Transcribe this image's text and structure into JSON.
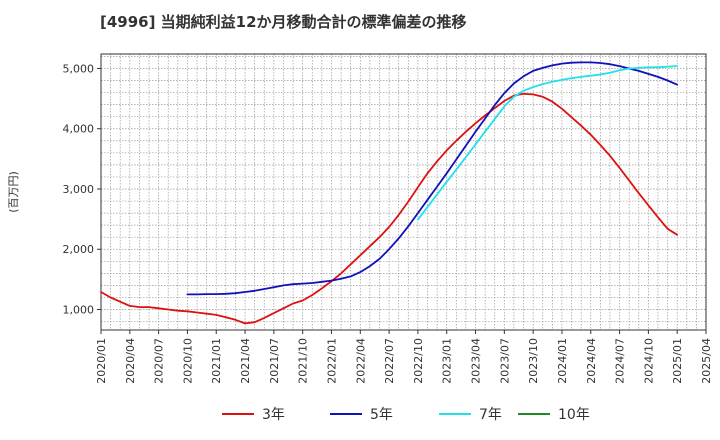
{
  "chart_data": {
    "type": "line",
    "title": "[4996]  当期純利益12か月移動合計の標準偏差の推移",
    "ylabel": "(百万円)",
    "xlabel": "",
    "ylim": [
      660,
      5240
    ],
    "yticks": [
      1000,
      2000,
      3000,
      4000,
      5000
    ],
    "ytick_labels": [
      "1,000",
      "2,000",
      "3,000",
      "4,000",
      "5,000"
    ],
    "xticks": [
      "2020/01",
      "2020/04",
      "2020/07",
      "2020/10",
      "2021/01",
      "2021/04",
      "2021/07",
      "2021/10",
      "2022/01",
      "2022/04",
      "2022/07",
      "2022/10",
      "2023/01",
      "2023/04",
      "2023/07",
      "2023/10",
      "2024/01",
      "2024/04",
      "2024/07",
      "2024/10",
      "2025/01",
      "2025/04"
    ],
    "grid": true,
    "legend_position": "bottom",
    "series": [
      {
        "name": "3年",
        "color": "#dd1111",
        "x": [
          "2020/01",
          "2020/02",
          "2020/03",
          "2020/04",
          "2020/05",
          "2020/06",
          "2020/07",
          "2020/08",
          "2020/09",
          "2020/10",
          "2020/11",
          "2020/12",
          "2021/01",
          "2021/02",
          "2021/03",
          "2021/04",
          "2021/05",
          "2021/06",
          "2021/07",
          "2021/08",
          "2021/09",
          "2021/10",
          "2021/11",
          "2021/12",
          "2022/01",
          "2022/02",
          "2022/03",
          "2022/04",
          "2022/05",
          "2022/06",
          "2022/07",
          "2022/08",
          "2022/09",
          "2022/10",
          "2022/11",
          "2022/12",
          "2023/01",
          "2023/02",
          "2023/03",
          "2023/04",
          "2023/05",
          "2023/06",
          "2023/07",
          "2023/08",
          "2023/09",
          "2023/10",
          "2023/11",
          "2023/12",
          "2024/01",
          "2024/02",
          "2024/03",
          "2024/04",
          "2024/05",
          "2024/06",
          "2024/07",
          "2024/08",
          "2024/09",
          "2024/10",
          "2024/11",
          "2024/12",
          "2025/01"
        ],
        "values": [
          1290,
          1200,
          1130,
          1060,
          1040,
          1040,
          1020,
          1000,
          980,
          970,
          950,
          930,
          910,
          870,
          830,
          770,
          790,
          860,
          940,
          1020,
          1100,
          1150,
          1240,
          1350,
          1470,
          1600,
          1750,
          1900,
          2050,
          2200,
          2370,
          2570,
          2790,
          3030,
          3260,
          3460,
          3640,
          3800,
          3950,
          4090,
          4220,
          4340,
          4460,
          4550,
          4580,
          4570,
          4530,
          4450,
          4330,
          4190,
          4050,
          3900,
          3730,
          3550,
          3350,
          3140,
          2930,
          2730,
          2530,
          2340,
          2240
        ]
      },
      {
        "name": "5年",
        "color": "#1111bb",
        "x": [
          "2020/10",
          "2020/11",
          "2020/12",
          "2021/01",
          "2021/02",
          "2021/03",
          "2021/04",
          "2021/05",
          "2021/06",
          "2021/07",
          "2021/08",
          "2021/09",
          "2021/10",
          "2021/11",
          "2021/12",
          "2022/01",
          "2022/02",
          "2022/03",
          "2022/04",
          "2022/05",
          "2022/06",
          "2022/07",
          "2022/08",
          "2022/09",
          "2022/10",
          "2022/11",
          "2022/12",
          "2023/01",
          "2023/02",
          "2023/03",
          "2023/04",
          "2023/05",
          "2023/06",
          "2023/07",
          "2023/08",
          "2023/09",
          "2023/10",
          "2023/11",
          "2023/12",
          "2024/01",
          "2024/02",
          "2024/03",
          "2024/04",
          "2024/05",
          "2024/06",
          "2024/07",
          "2024/08",
          "2024/09",
          "2024/10",
          "2024/11",
          "2024/12",
          "2025/01"
        ],
        "values": [
          1250,
          1250,
          1255,
          1255,
          1260,
          1270,
          1290,
          1310,
          1340,
          1370,
          1400,
          1420,
          1430,
          1440,
          1460,
          1480,
          1510,
          1550,
          1620,
          1720,
          1840,
          2000,
          2180,
          2380,
          2600,
          2820,
          3040,
          3260,
          3490,
          3720,
          3950,
          4170,
          4390,
          4590,
          4750,
          4870,
          4960,
          5010,
          5050,
          5080,
          5095,
          5100,
          5100,
          5090,
          5070,
          5040,
          5000,
          4960,
          4910,
          4860,
          4800,
          4730
        ]
      },
      {
        "name": "7年",
        "color": "#22e0e8",
        "x": [
          "2022/10",
          "2022/11",
          "2022/12",
          "2023/01",
          "2023/02",
          "2023/03",
          "2023/04",
          "2023/05",
          "2023/06",
          "2023/07",
          "2023/08",
          "2023/09",
          "2023/10",
          "2023/11",
          "2023/12",
          "2024/01",
          "2024/02",
          "2024/03",
          "2024/04",
          "2024/05",
          "2024/06",
          "2024/07",
          "2024/08",
          "2024/09",
          "2024/10",
          "2024/11",
          "2024/12",
          "2025/01"
        ],
        "values": [
          2490,
          2700,
          2910,
          3120,
          3320,
          3530,
          3740,
          3950,
          4160,
          4370,
          4530,
          4630,
          4690,
          4740,
          4780,
          4810,
          4840,
          4860,
          4880,
          4900,
          4930,
          4970,
          5000,
          5010,
          5020,
          5020,
          5030,
          5040
        ]
      },
      {
        "name": "10年",
        "color": "#228822",
        "x": [],
        "values": []
      }
    ]
  }
}
